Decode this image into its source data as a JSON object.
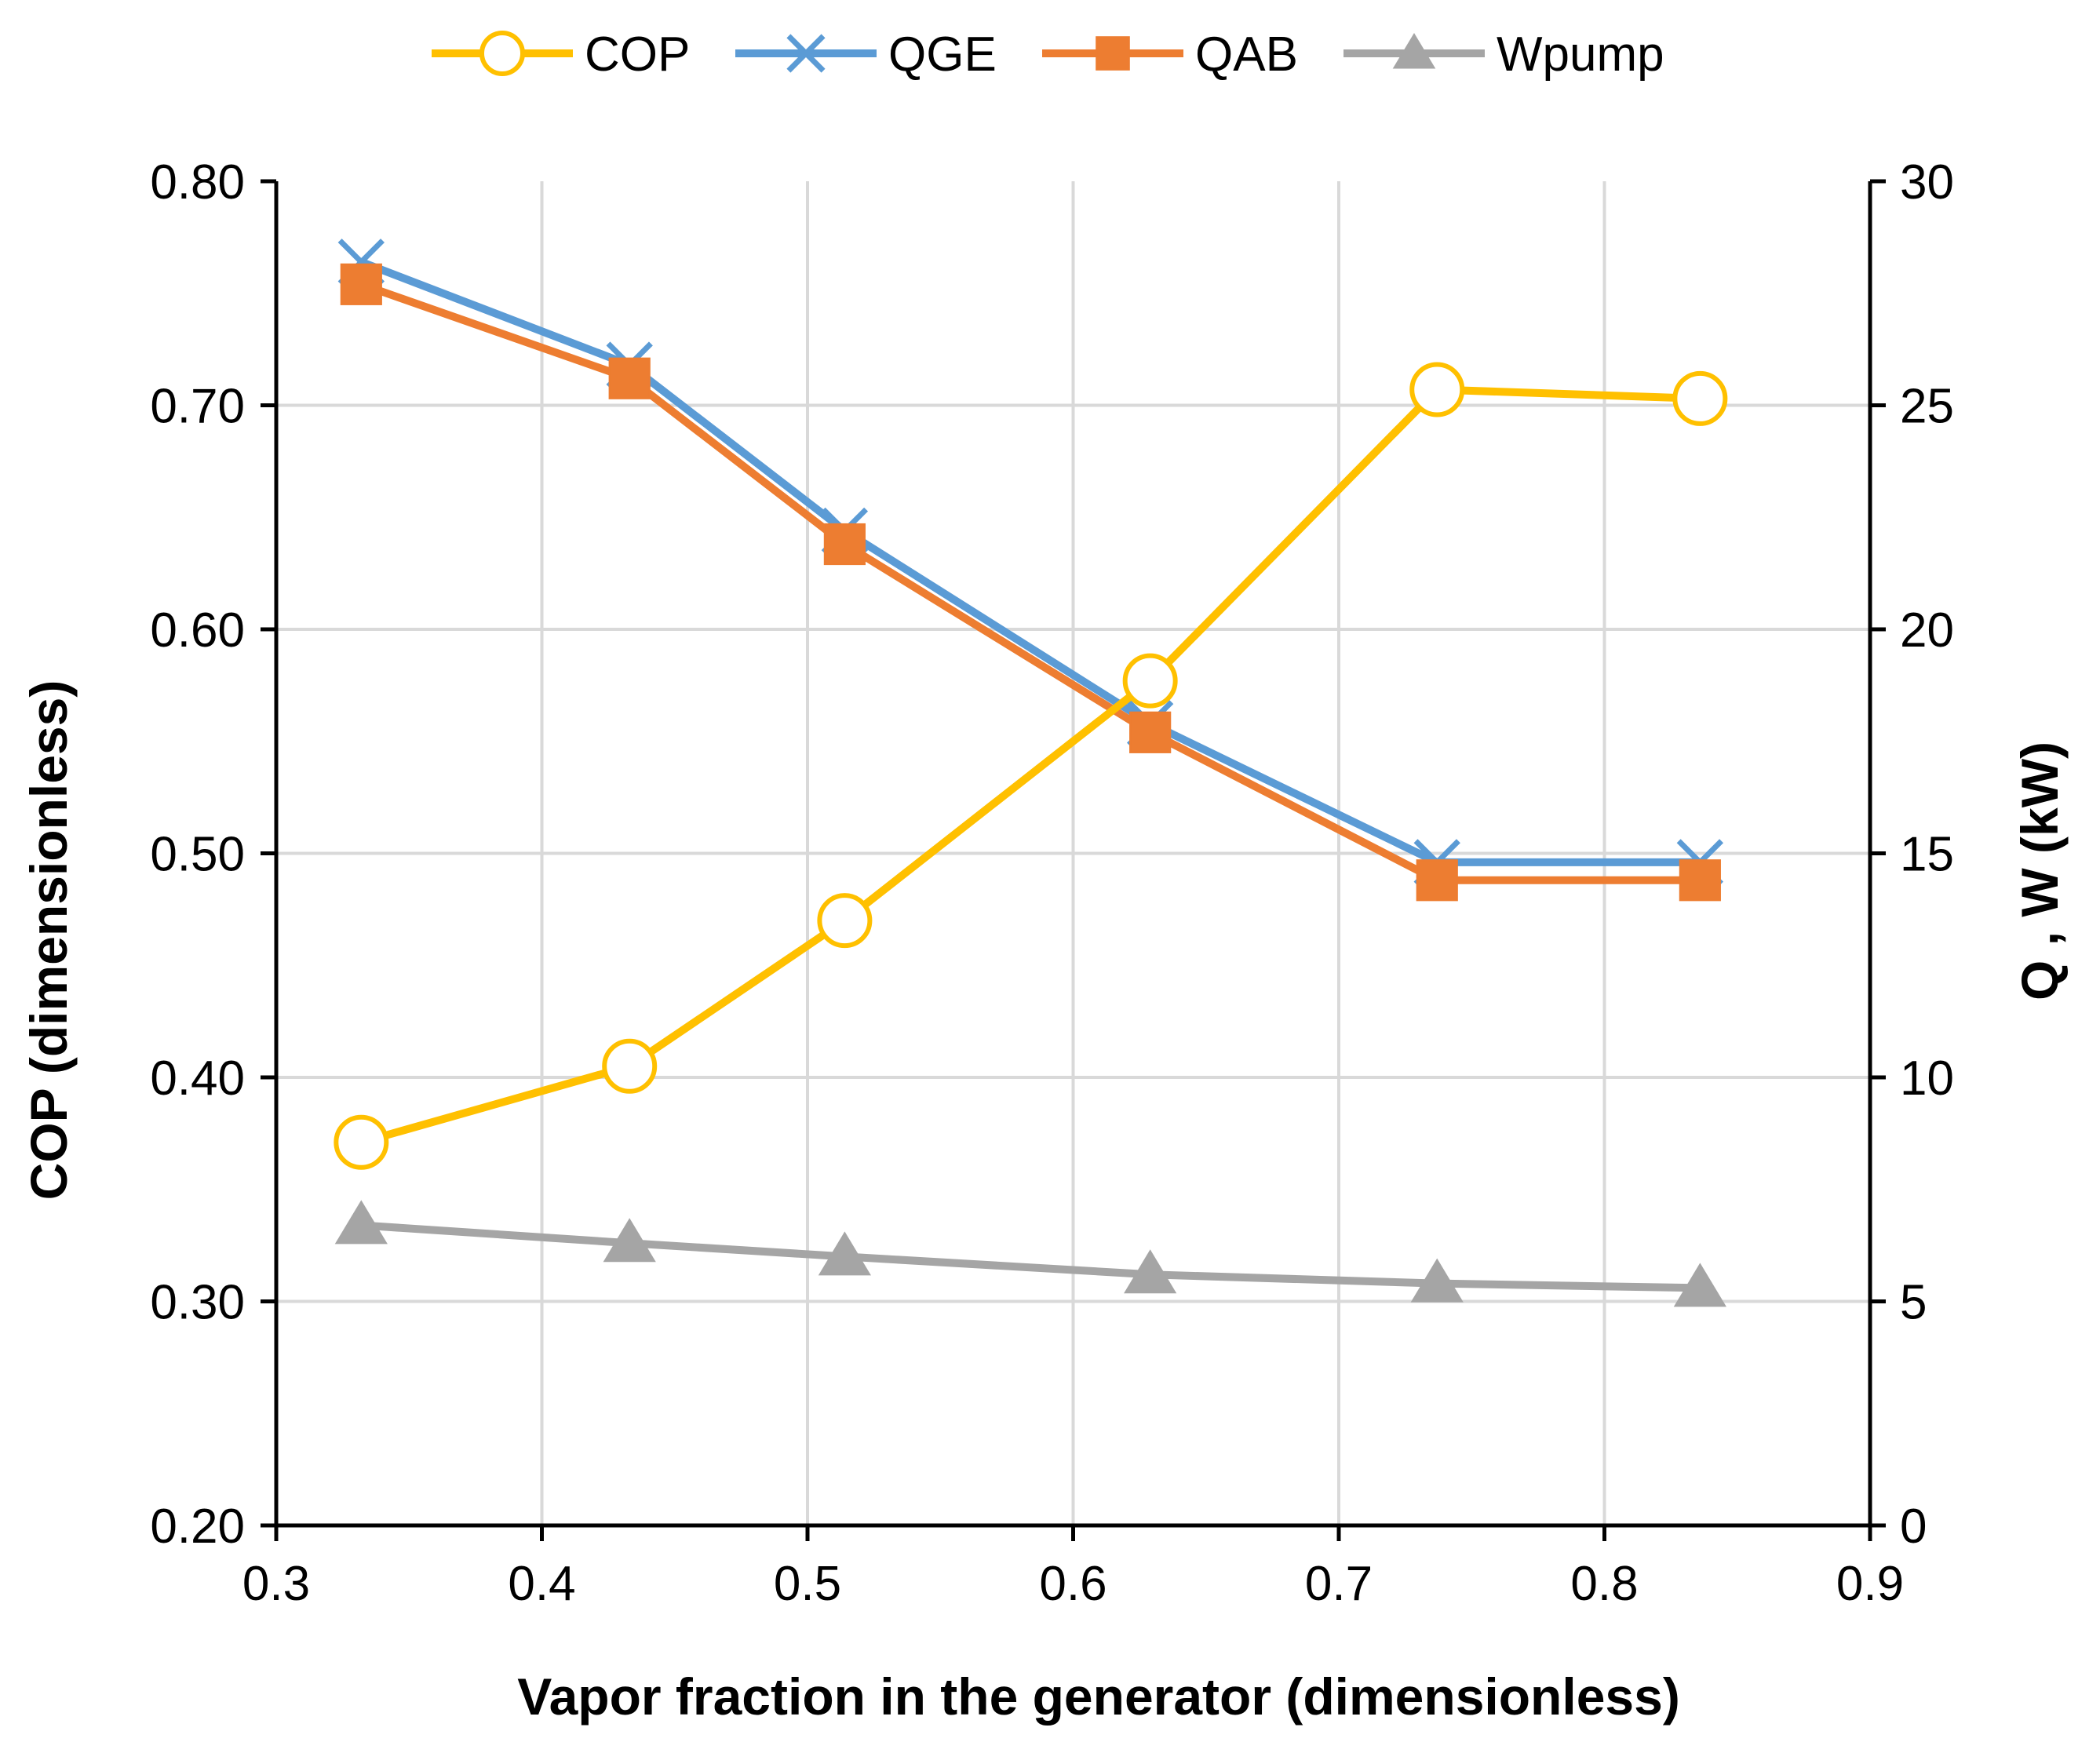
{
  "chart_data": {
    "type": "line",
    "title": "",
    "xlabel": "Vapor fraction in the generator (dimensionless)",
    "ylabel_left": "COP (dimensionless)",
    "ylabel_right": "Q , W  (kW)",
    "xlim": [
      0.3,
      0.9
    ],
    "ylim_left": [
      0.2,
      0.8
    ],
    "ylim_right": [
      0,
      30
    ],
    "x_ticks": [
      "0.3",
      "0.4",
      "0.5",
      "0.6",
      "0.7",
      "0.8",
      "0.9"
    ],
    "y_ticks_left": [
      "0.20",
      "0.30",
      "0.40",
      "0.50",
      "0.60",
      "0.70",
      "0.80"
    ],
    "y_ticks_right": [
      "0",
      "5",
      "10",
      "15",
      "20",
      "25",
      "30"
    ],
    "grid": true,
    "legend_position": "top",
    "x": [
      0.332,
      0.433,
      0.514,
      0.629,
      0.737,
      0.836
    ],
    "series": [
      {
        "name": "COP",
        "axis": "left",
        "marker": "circle",
        "color": "#FFC000",
        "values": [
          0.371,
          0.405,
          0.47,
          0.577,
          0.707,
          0.703
        ]
      },
      {
        "name": "QGE",
        "axis": "right",
        "marker": "x",
        "color": "#5B9BD5",
        "values": [
          28.2,
          25.9,
          22.2,
          17.9,
          14.8,
          14.8
        ]
      },
      {
        "name": "QAB",
        "axis": "right",
        "marker": "square",
        "color": "#ED7D31",
        "values": [
          27.7,
          25.6,
          21.9,
          17.7,
          14.4,
          14.4
        ]
      },
      {
        "name": "Wpump",
        "axis": "right",
        "marker": "triangle",
        "color": "#A5A5A5",
        "values": [
          6.7,
          6.3,
          6.0,
          5.6,
          5.4,
          5.3
        ]
      }
    ]
  }
}
